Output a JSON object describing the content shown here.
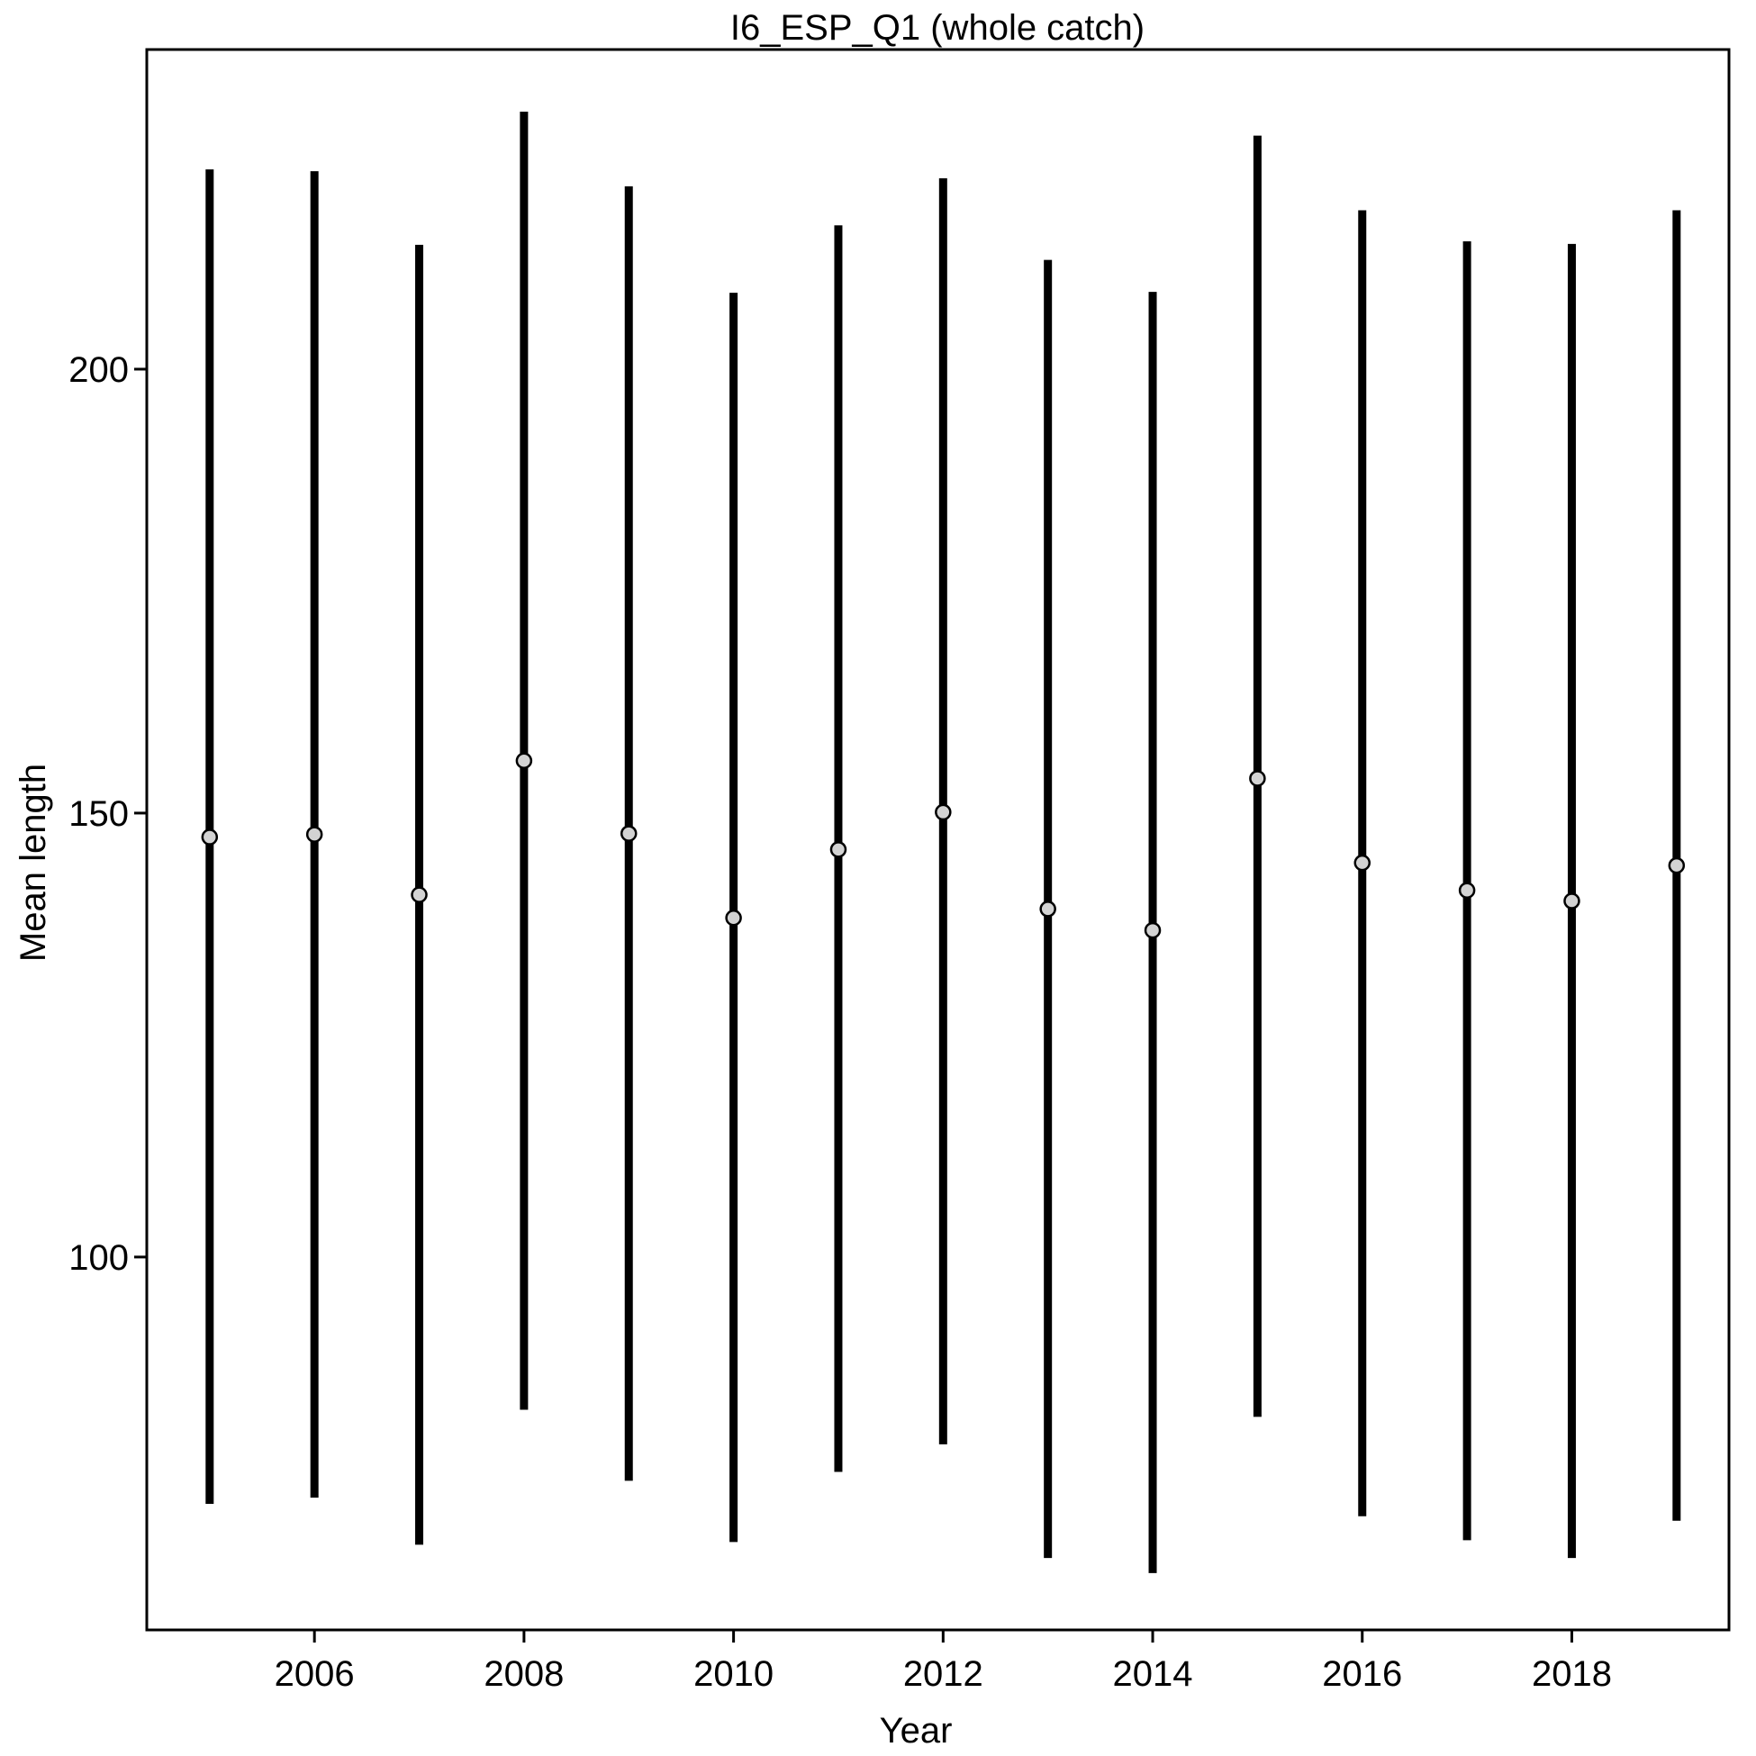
{
  "chart_data": {
    "type": "scatter",
    "title": "I6_ESP_Q1 (whole catch)",
    "xlabel": "Year",
    "ylabel": "Mean length",
    "xlim": [
      2004.4,
      2019.5
    ],
    "ylim": [
      58,
      236
    ],
    "x_ticks": [
      2006,
      2008,
      2010,
      2012,
      2014,
      2016,
      2018
    ],
    "y_ticks": [
      100,
      150,
      200
    ],
    "grid": false,
    "legend": "none",
    "colors": {
      "bar": "#000000",
      "point_fill": "#d3d3d3",
      "point_stroke": "#000000",
      "frame": "#000000"
    },
    "series": [
      {
        "x": [
          2005,
          2006,
          2007,
          2008,
          2009,
          2010,
          2011,
          2012,
          2013,
          2014,
          2015,
          2016,
          2017,
          2018,
          2019
        ],
        "mean": [
          147.3,
          147.6,
          140.8,
          155.9,
          147.7,
          138.2,
          145.9,
          150.1,
          139.2,
          136.8,
          153.9,
          144.4,
          141.3,
          140.1,
          144.1
        ],
        "lower": [
          72.2,
          72.9,
          67.6,
          82.8,
          74.8,
          67.9,
          75.8,
          78.9,
          66.1,
          64.4,
          82.0,
          70.8,
          68.1,
          66.1,
          70.3
        ],
        "upper": [
          222.5,
          222.3,
          214.0,
          229.0,
          220.6,
          208.6,
          216.2,
          221.5,
          212.3,
          208.7,
          226.3,
          217.9,
          214.4,
          214.1,
          217.9
        ]
      }
    ]
  }
}
